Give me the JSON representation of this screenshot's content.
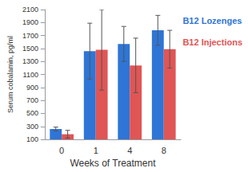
{
  "chart_data": {
    "type": "bar",
    "x_label": "Weeks of Treatment",
    "y_label": "Serum cobalamin, pg/ml",
    "categories": [
      "0",
      "1",
      "4",
      "8"
    ],
    "series": [
      {
        "name": "B12 Lozenges",
        "color": "#2e75d6",
        "values": [
          260,
          1460,
          1570,
          1780
        ],
        "errors": [
          30,
          430,
          270,
          230
        ]
      },
      {
        "name": "B12 Injections",
        "color": "#e05555",
        "values": [
          180,
          1480,
          1240,
          1490
        ],
        "errors": [
          60,
          620,
          420,
          290
        ]
      }
    ],
    "ylim": [
      100,
      2100
    ],
    "yticks": [
      100,
      300,
      500,
      700,
      900,
      1100,
      1300,
      1500,
      1700,
      1900,
      2100
    ],
    "grid": false,
    "legend": "right"
  }
}
